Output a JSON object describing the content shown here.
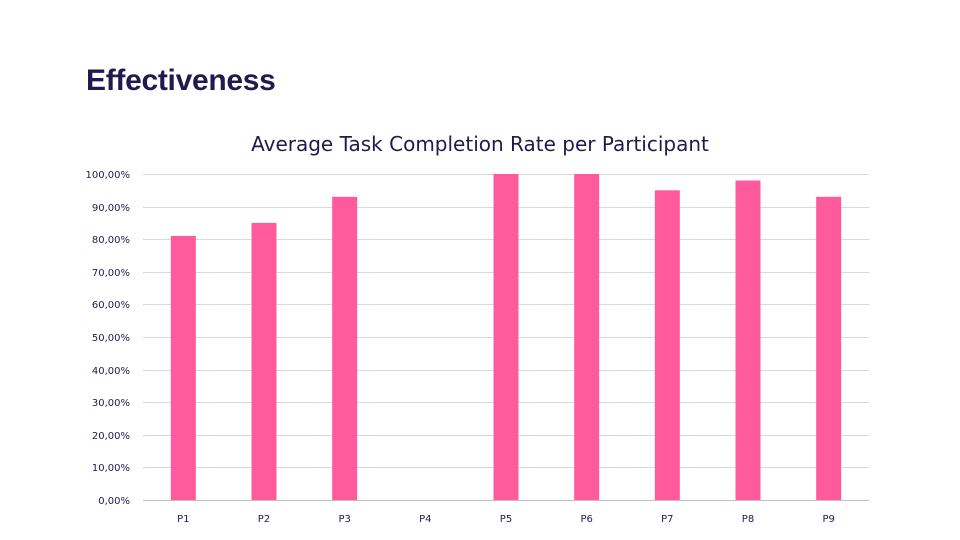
{
  "slide": {
    "title": "Effectiveness"
  },
  "colors": {
    "bar": "#ff5a9c",
    "title_text": "#201a4f",
    "grid": "#d9d9d9"
  },
  "chart_data": {
    "type": "bar",
    "title": "Average Task Completion Rate per Participant",
    "xlabel": "",
    "ylabel": "",
    "categories": [
      "P1",
      "P2",
      "P3",
      "P4",
      "P5",
      "P6",
      "P7",
      "P8",
      "P9"
    ],
    "values": [
      0.81,
      0.85,
      0.93,
      0,
      1.0,
      1.0,
      0.95,
      0.98,
      0.93
    ],
    "ylim": [
      0,
      1
    ],
    "yticks": [
      0,
      0.1,
      0.2,
      0.3,
      0.4,
      0.5,
      0.6,
      0.7,
      0.8,
      0.9,
      1.0
    ],
    "ytick_labels": [
      "0,00%",
      "10,00%",
      "20,00%",
      "30,00%",
      "40,00%",
      "50,00%",
      "60,00%",
      "70,00%",
      "80,00%",
      "90,00%",
      "100,00%"
    ],
    "grid": true,
    "legend": "none"
  }
}
